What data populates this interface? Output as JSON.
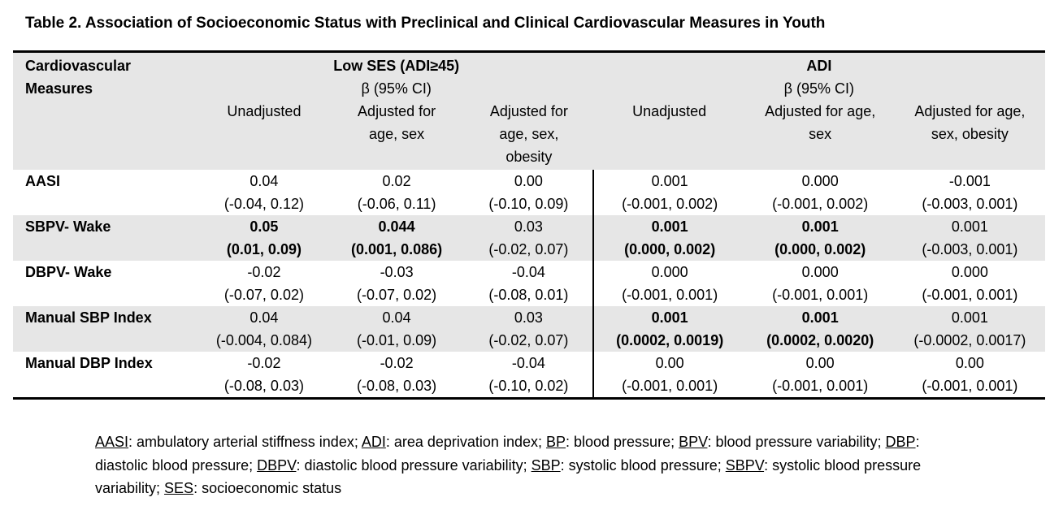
{
  "title": "Table 2. Association of Socioeconomic Status with Preclinical and Clinical Cardiovascular Measures in Youth",
  "header": {
    "row_label_line1": "Cardiovascular",
    "row_label_line2": "Measures",
    "group1": {
      "name": "Low SES (ADI≥45)",
      "sub": "β (95% CI)"
    },
    "group2": {
      "name": "ADI",
      "sub": "β (95% CI)"
    },
    "columns": [
      [
        "Unadjusted"
      ],
      [
        "Adjusted for",
        "age, sex"
      ],
      [
        "Adjusted for",
        "age, sex,",
        "obesity"
      ],
      [
        "Unadjusted"
      ],
      [
        "Adjusted for age,",
        "sex"
      ],
      [
        "Adjusted for age,",
        "sex, obesity"
      ]
    ]
  },
  "rows": [
    {
      "label": "AASI",
      "shaded": false,
      "cells": [
        {
          "est": "0.04",
          "ci": "(-0.04, 0.12)",
          "bold": false
        },
        {
          "est": "0.02",
          "ci": "(-0.06, 0.11)",
          "bold": false
        },
        {
          "est": "0.00",
          "ci": "(-0.10, 0.09)",
          "bold": false
        },
        {
          "est": "0.001",
          "ci": "(-0.001, 0.002)",
          "bold": false
        },
        {
          "est": "0.000",
          "ci": "(-0.001, 0.002)",
          "bold": false
        },
        {
          "est": "-0.001",
          "ci": "(-0.003, 0.001)",
          "bold": false
        }
      ]
    },
    {
      "label": "SBPV- Wake",
      "shaded": true,
      "cells": [
        {
          "est": "0.05",
          "ci": "(0.01, 0.09)",
          "bold": true
        },
        {
          "est": "0.044",
          "ci": "(0.001, 0.086)",
          "bold": true
        },
        {
          "est": "0.03",
          "ci": "(-0.02, 0.07)",
          "bold": false
        },
        {
          "est": "0.001",
          "ci": "(0.000, 0.002)",
          "bold": true
        },
        {
          "est": "0.001",
          "ci": "(0.000, 0.002)",
          "bold": true
        },
        {
          "est": "0.001",
          "ci": "(-0.003, 0.001)",
          "bold": false
        }
      ]
    },
    {
      "label": "DBPV- Wake",
      "shaded": false,
      "cells": [
        {
          "est": "-0.02",
          "ci": "(-0.07, 0.02)",
          "bold": false
        },
        {
          "est": "-0.03",
          "ci": "(-0.07, 0.02)",
          "bold": false
        },
        {
          "est": "-0.04",
          "ci": "(-0.08, 0.01)",
          "bold": false
        },
        {
          "est": "0.000",
          "ci": "(-0.001, 0.001)",
          "bold": false
        },
        {
          "est": "0.000",
          "ci": "(-0.001, 0.001)",
          "bold": false
        },
        {
          "est": "0.000",
          "ci": "(-0.001, 0.001)",
          "bold": false
        }
      ]
    },
    {
      "label": "Manual SBP Index",
      "shaded": true,
      "cells": [
        {
          "est": "0.04",
          "ci": "(-0.004, 0.084)",
          "bold": false
        },
        {
          "est": "0.04",
          "ci": "(-0.01, 0.09)",
          "bold": false
        },
        {
          "est": "0.03",
          "ci": "(-0.02, 0.07)",
          "bold": false
        },
        {
          "est": "0.001",
          "ci": "(0.0002, 0.0019)",
          "bold": true
        },
        {
          "est": "0.001",
          "ci": "(0.0002, 0.0020)",
          "bold": true
        },
        {
          "est": "0.001",
          "ci": "(-0.0002, 0.0017)",
          "bold": false
        }
      ]
    },
    {
      "label": "Manual DBP Index",
      "shaded": false,
      "cells": [
        {
          "est": "-0.02",
          "ci": "(-0.08, 0.03)",
          "bold": false
        },
        {
          "est": "-0.02",
          "ci": "(-0.08, 0.03)",
          "bold": false
        },
        {
          "est": "-0.04",
          "ci": "(-0.10, 0.02)",
          "bold": false
        },
        {
          "est": "0.00",
          "ci": "(-0.001, 0.001)",
          "bold": false
        },
        {
          "est": "0.00",
          "ci": "(-0.001, 0.001)",
          "bold": false
        },
        {
          "est": "0.00",
          "ci": "(-0.001, 0.001)",
          "bold": false
        }
      ]
    }
  ],
  "footnote": [
    {
      "abbr": "AASI",
      "def": ": ambulatory arterial stiffness index; "
    },
    {
      "abbr": "ADI",
      "def": ": area deprivation index; "
    },
    {
      "abbr": "BP",
      "def": ": blood pressure; "
    },
    {
      "abbr": "BPV",
      "def": ": blood pressure variability; "
    },
    {
      "abbr": "DBP",
      "def": ": diastolic blood pressure; "
    },
    {
      "abbr": "DBPV",
      "def": ": diastolic blood pressure variability; "
    },
    {
      "abbr": "SBP",
      "def": ": systolic blood pressure; "
    },
    {
      "abbr": "SBPV",
      "def": ": systolic blood pressure variability; "
    },
    {
      "abbr": "SES",
      "def": ": socioeconomic status"
    }
  ]
}
